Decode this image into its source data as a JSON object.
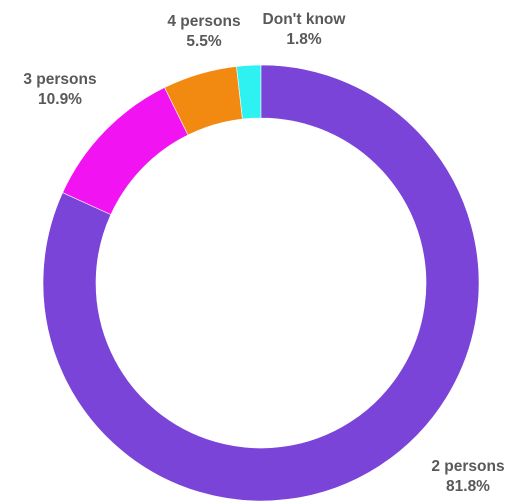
{
  "chart_data": {
    "type": "pie",
    "variant": "donut",
    "title": "",
    "start_angle_deg": 0,
    "direction": "counterclockwise",
    "slices": [
      {
        "label": "Don't know",
        "value_label": "1.8%",
        "value": 1.8,
        "color": "#2EF2F2"
      },
      {
        "label": "4 persons",
        "value_label": "5.5%",
        "value": 5.5,
        "color": "#F28A11"
      },
      {
        "label": "3 persons",
        "value_label": "10.9%",
        "value": 10.9,
        "color": "#F213F2"
      },
      {
        "label": "2 persons",
        "value_label": "81.8%",
        "value": 81.8,
        "color": "#7B44D9"
      }
    ],
    "label_color": "#595959",
    "legend": "none"
  }
}
